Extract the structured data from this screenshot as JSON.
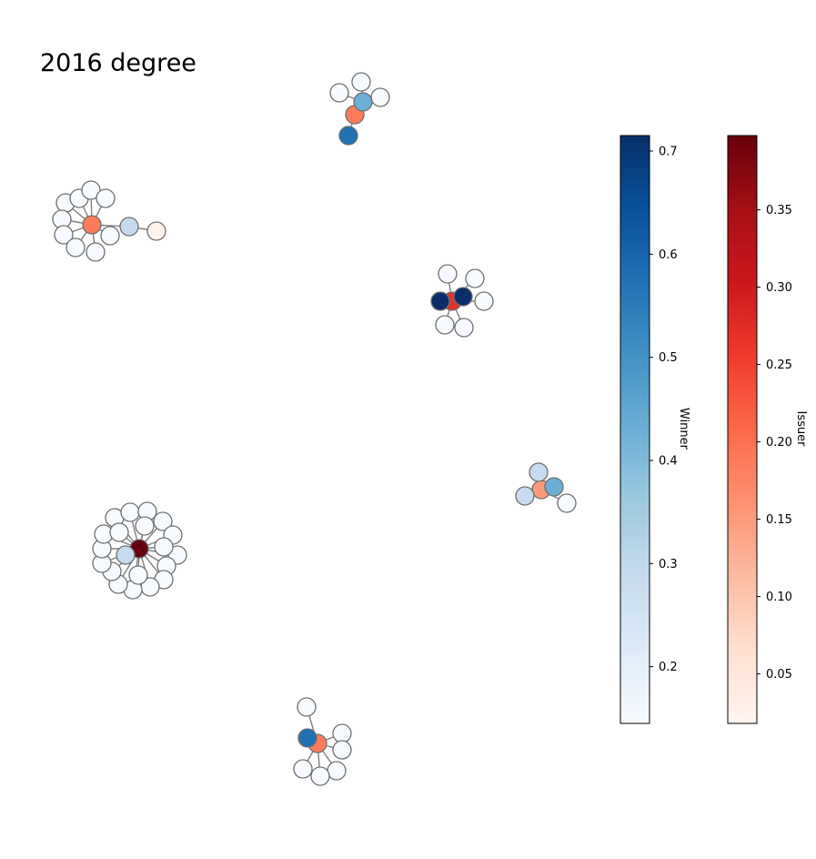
{
  "title": "2016 degree",
  "colorbars": [
    {
      "label": "Winner",
      "colormap": "Blues",
      "min": 0.145,
      "max": 0.715,
      "ticks": [
        0.2,
        0.3,
        0.4,
        0.5,
        0.6,
        0.7
      ],
      "tick_labels": [
        "0.2",
        "0.3",
        "0.4",
        "0.5",
        "0.6",
        "0.7"
      ]
    },
    {
      "label": "Issuer",
      "colormap": "Reds",
      "min": 0.018,
      "max": 0.398,
      "ticks": [
        0.05,
        0.1,
        0.15,
        0.2,
        0.25,
        0.3,
        0.35
      ],
      "tick_labels": [
        "0.05",
        "0.10",
        "0.15",
        "0.20",
        "0.25",
        "0.30",
        "0.35"
      ]
    }
  ],
  "colors": {
    "background": "#ffffff",
    "edge": "#808080",
    "node_outline": "#6e6e6e",
    "blues_ramp": [
      "#f7fbff",
      "#deebf7",
      "#c6dbef",
      "#9ecae1",
      "#6baed6",
      "#4292c6",
      "#2171b5",
      "#08519c",
      "#08306b"
    ],
    "reds_ramp": [
      "#fff5f0",
      "#fee0d2",
      "#fcbba1",
      "#fc9272",
      "#fb6a4a",
      "#ef3b2c",
      "#cb181d",
      "#a50f15",
      "#67000d"
    ]
  }
}
